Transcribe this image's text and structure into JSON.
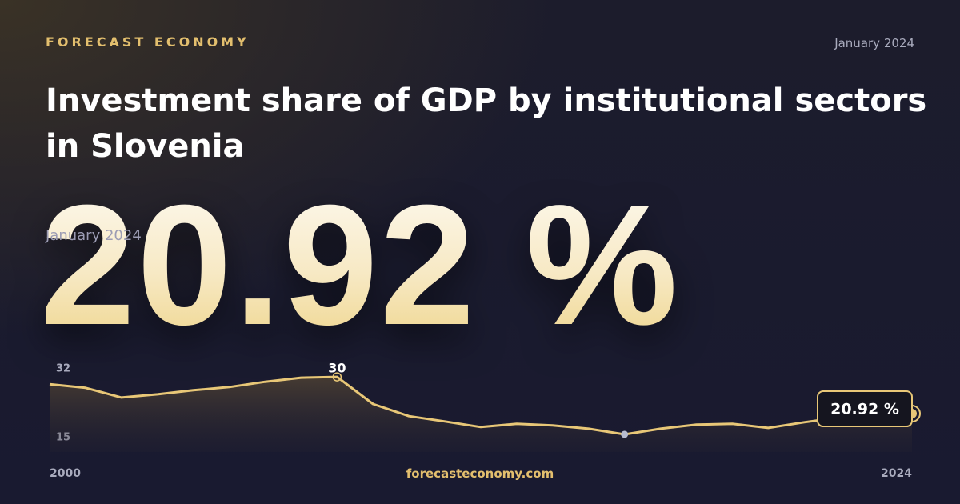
{
  "brand": "FORECAST ECONOMY",
  "date": "January 2024",
  "title": "Investment share of GDP by institutional sectors in Slovenia",
  "footer": "forecasteconomy.com",
  "chart_data": {
    "type": "line",
    "x": [
      2000,
      2001,
      2002,
      2003,
      2004,
      2005,
      2006,
      2007,
      2008,
      2009,
      2010,
      2011,
      2012,
      2013,
      2014,
      2015,
      2016,
      2017,
      2018,
      2019,
      2020,
      2021,
      2022,
      2023,
      2024
    ],
    "values": [
      28.2,
      27.3,
      24.9,
      25.7,
      26.7,
      27.5,
      28.8,
      29.8,
      30,
      23.3,
      20.3,
      19.0,
      17.6,
      18.4,
      18.0,
      17.2,
      15.8,
      17.2,
      18.2,
      18.4,
      17.4,
      18.8,
      20.0,
      20.5,
      20.92
    ],
    "value_labels": [
      null,
      null,
      null,
      null,
      null,
      null,
      null,
      null,
      null,
      null,
      null,
      null,
      null,
      null,
      null,
      null,
      null,
      null,
      null,
      null,
      null,
      null,
      null,
      null,
      "20.92 %"
    ],
    "color": "#e8c777",
    "xlim": [
      2000,
      2024
    ],
    "xticks": [
      2000,
      2024
    ],
    "ylim": [
      15,
      32
    ],
    "yticks": [
      15,
      32
    ],
    "grid": false
  }
}
